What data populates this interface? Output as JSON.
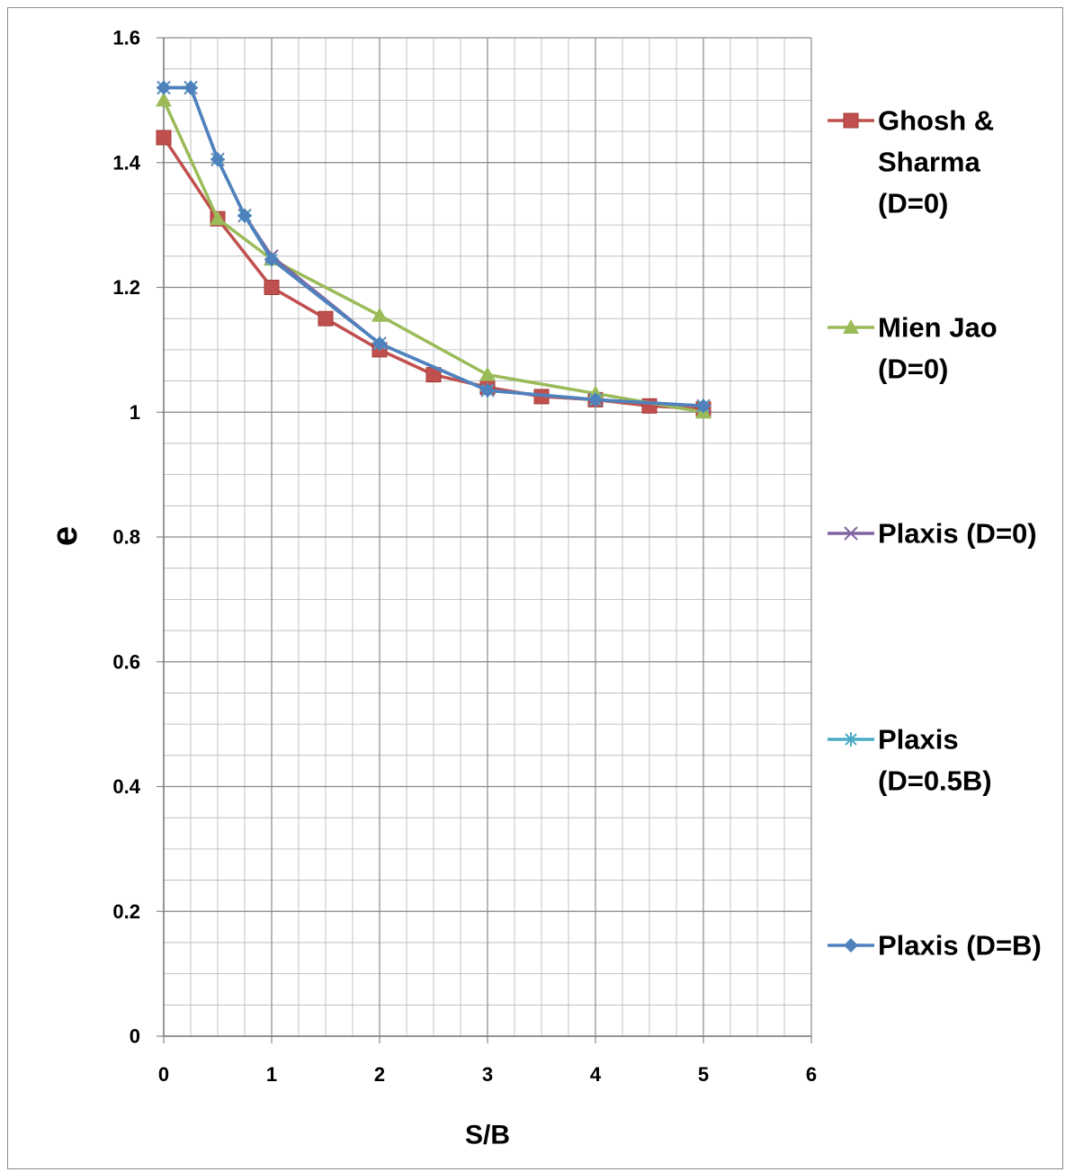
{
  "chart_data": {
    "type": "line",
    "title": "",
    "xlabel": "S/B",
    "ylabel": "e",
    "xlim": [
      0,
      6
    ],
    "ylim": [
      0,
      1.6
    ],
    "x_ticks": [
      0,
      1,
      2,
      3,
      4,
      5,
      6
    ],
    "y_ticks": [
      0,
      0.2,
      0.4,
      0.6,
      0.8,
      1,
      1.2,
      1.4,
      1.6
    ],
    "x_minor_step": 0.25,
    "y_minor_step": 0.05,
    "grid": true,
    "legend_position": "right",
    "series": [
      {
        "name": "Ghosh & Sharma (D=0)",
        "legend_lines": [
          "Ghosh &",
          "Sharma",
          "(D=0)"
        ],
        "color": "#c0504d",
        "marker": "square",
        "x": [
          0,
          0.5,
          1,
          1.5,
          2,
          2.5,
          3,
          3.5,
          4,
          4.5,
          5
        ],
        "y": [
          1.44,
          1.31,
          1.2,
          1.15,
          1.1,
          1.06,
          1.04,
          1.025,
          1.02,
          1.01,
          1.005
        ]
      },
      {
        "name": "Mien Jao (D=0)",
        "legend_lines": [
          "Mien Jao",
          "(D=0)"
        ],
        "color": "#9bbb59",
        "marker": "triangle",
        "x": [
          0,
          0.5,
          1,
          2,
          3,
          4,
          5
        ],
        "y": [
          1.5,
          1.31,
          1.245,
          1.155,
          1.06,
          1.03,
          1.0
        ]
      },
      {
        "name": "Plaxis (D=0)",
        "legend_lines": [
          "Plaxis (D=0)"
        ],
        "color": "#8064a2",
        "marker": "x",
        "x": [
          0,
          0.25,
          0.5,
          0.75,
          1,
          2,
          3,
          4,
          5
        ],
        "y": [
          1.52,
          1.52,
          1.405,
          1.315,
          1.25,
          1.11,
          1.035,
          1.02,
          1.01
        ]
      },
      {
        "name": "Plaxis (D=0.5B)",
        "legend_lines": [
          "Plaxis",
          "(D=0.5B)"
        ],
        "color": "#4bacc6",
        "marker": "star",
        "x": [
          0,
          0.25,
          0.5,
          0.75,
          1,
          2,
          3,
          4,
          5
        ],
        "y": [
          1.52,
          1.52,
          1.405,
          1.315,
          1.245,
          1.11,
          1.035,
          1.02,
          1.01
        ]
      },
      {
        "name": "Plaxis (D=B)",
        "legend_lines": [
          "Plaxis (D=B)"
        ],
        "color": "#4f81bd",
        "marker": "diamond",
        "x": [
          0,
          0.25,
          0.5,
          0.75,
          1,
          2,
          3,
          4,
          5
        ],
        "y": [
          1.52,
          1.52,
          1.405,
          1.315,
          1.245,
          1.11,
          1.035,
          1.02,
          1.01
        ]
      }
    ]
  }
}
